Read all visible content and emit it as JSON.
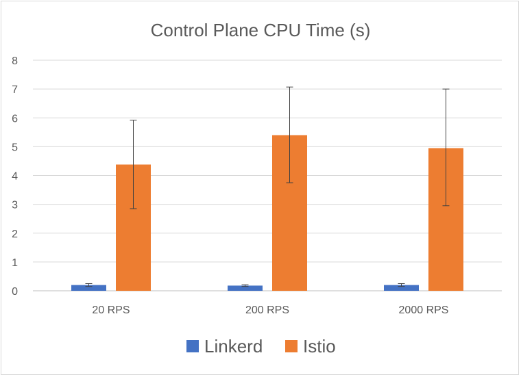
{
  "chart_data": {
    "type": "bar",
    "title": "Control Plane CPU Time (s)",
    "xlabel": "",
    "ylabel": "",
    "categories": [
      "20 RPS",
      "200 RPS",
      "2000 RPS"
    ],
    "ylim": [
      0,
      8
    ],
    "yticks": [
      0,
      1,
      2,
      3,
      4,
      5,
      6,
      7,
      8
    ],
    "grid": true,
    "legend_position": "bottom",
    "series": [
      {
        "name": "Linkerd",
        "color": "#4472c4",
        "values": [
          0.2,
          0.18,
          0.2
        ],
        "error_low": [
          0.15,
          0.15,
          0.15
        ],
        "error_high": [
          0.25,
          0.21,
          0.25
        ]
      },
      {
        "name": "Istio",
        "color": "#ed7d31",
        "values": [
          4.38,
          5.4,
          4.95
        ],
        "error_low": [
          2.85,
          3.75,
          2.95
        ],
        "error_high": [
          5.92,
          7.07,
          7.0
        ]
      }
    ]
  }
}
